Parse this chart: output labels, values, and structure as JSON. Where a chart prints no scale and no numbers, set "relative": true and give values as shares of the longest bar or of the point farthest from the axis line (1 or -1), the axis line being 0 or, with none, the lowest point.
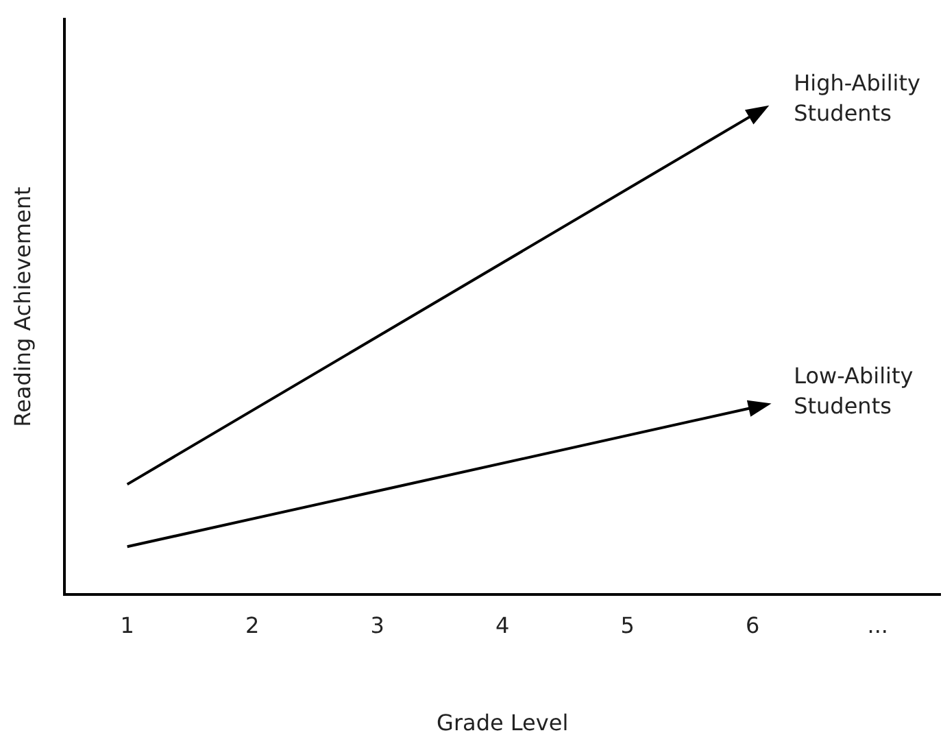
{
  "chart_data": {
    "type": "line",
    "xlabel": "Grade Level",
    "ylabel": "Reading Achievement",
    "categories": [
      "1",
      "2",
      "3",
      "4",
      "5",
      "6",
      "..."
    ],
    "relative": true,
    "grid": false,
    "legend": false,
    "tick_labels": "x",
    "line_style": "solid",
    "series": [
      {
        "name": "High-Ability Students",
        "color": "#000000",
        "values": [
          0.23,
          null,
          null,
          null,
          null,
          1,
          null
        ]
      },
      {
        "name": "Low-Ability Students",
        "color": "#000000",
        "values": [
          0.1,
          null,
          null,
          null,
          null,
          0.39,
          null
        ]
      }
    ]
  }
}
